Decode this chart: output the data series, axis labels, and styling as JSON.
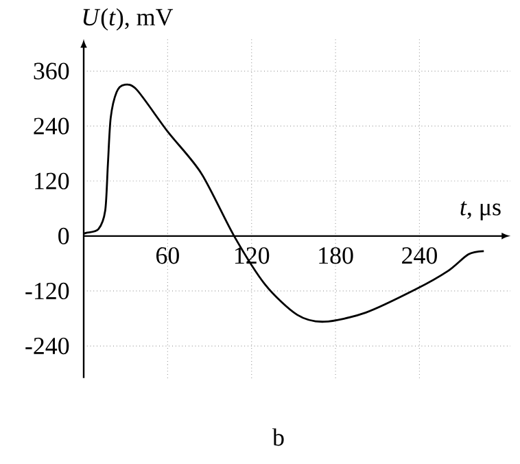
{
  "chart_data": {
    "type": "line",
    "xlabel": "*t*, μs",
    "ylabel": "*U*(*t*), mV",
    "x": [
      0,
      2,
      10.5,
      15.4,
      17.3,
      19.3,
      23.5,
      29,
      38,
      60,
      84,
      107.5,
      129.7,
      152.6,
      172,
      201.7,
      237.5,
      260.5,
      275,
      286
    ],
    "series": [
      {
        "color": "#000000",
        "values": [
          5,
          7,
          15,
          56,
          157,
          258,
          314,
          330,
          319,
          228,
          137,
          0,
          -106,
          -172,
          -187,
          -167,
          -116,
          -76,
          -40,
          -33
        ]
      }
    ],
    "xlim": [
      0,
      305
    ],
    "ylim": [
      -310,
      430
    ],
    "xticks": [
      60,
      120,
      180,
      240
    ],
    "yticks": [
      -240,
      -120,
      0,
      120,
      240,
      360
    ],
    "grid": true,
    "line_style": "solid",
    "marker": "none",
    "annotations": [
      "b"
    ]
  }
}
